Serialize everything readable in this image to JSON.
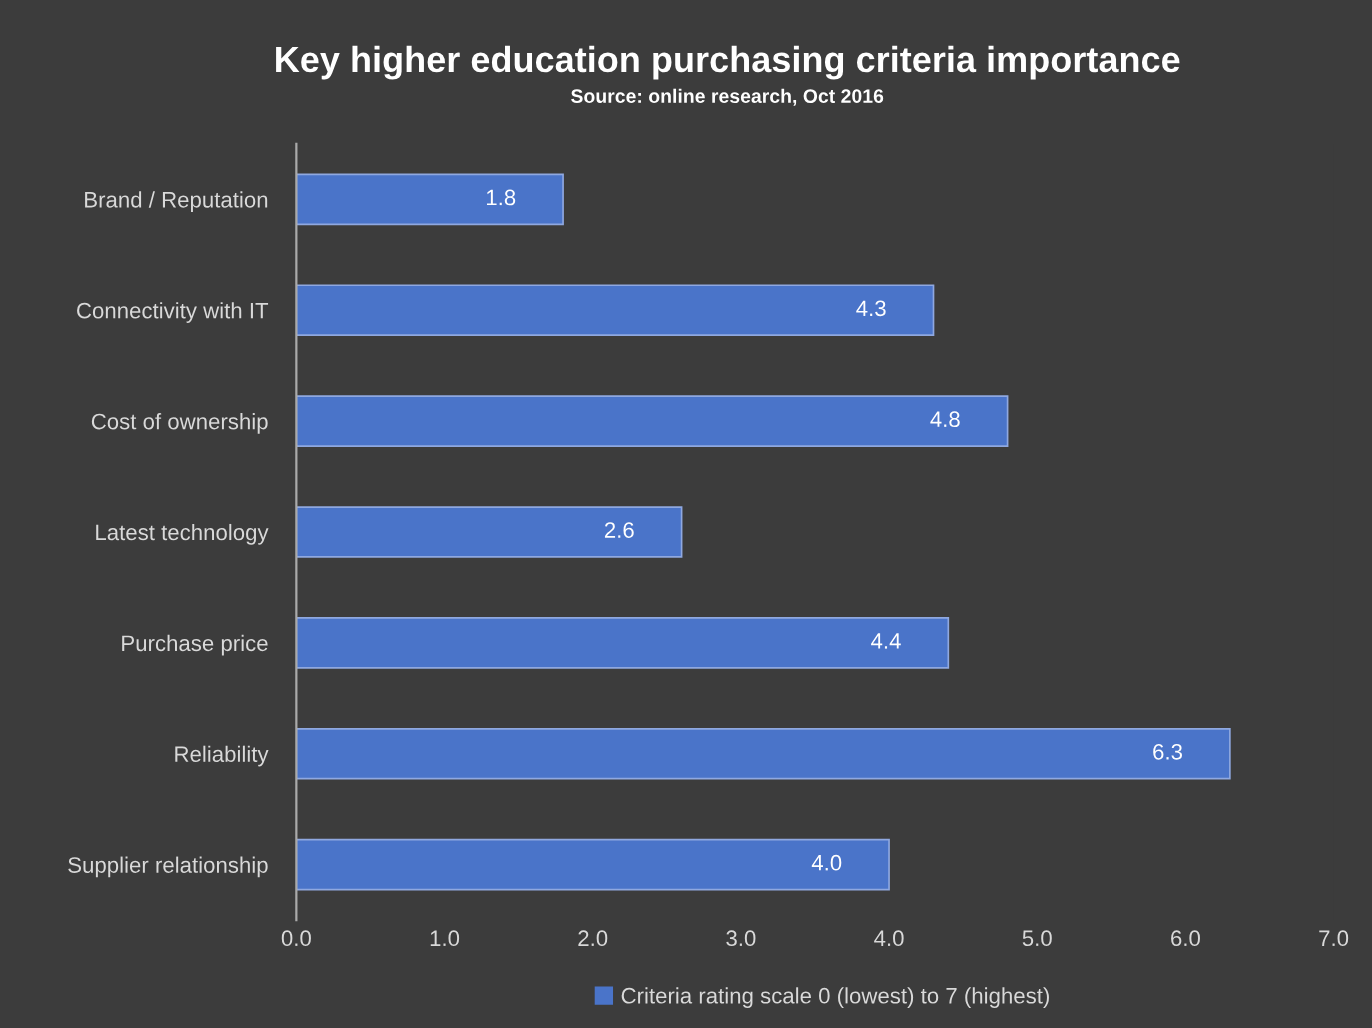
{
  "chart_data": {
    "type": "bar",
    "orientation": "horizontal",
    "title": "Key higher education purchasing criteria importance",
    "subtitle": "Source: online research, Oct 2016",
    "categories": [
      "Brand / Reputation",
      "Connectivity with IT",
      "Cost of ownership",
      "Latest technology",
      "Purchase price",
      "Reliability",
      "Supplier relationship"
    ],
    "series": [
      {
        "name": "Criteria rating scale 0 (lowest) to 7 (highest)",
        "color": "#4a74c9",
        "values": [
          1.8,
          4.3,
          4.8,
          2.6,
          4.4,
          6.3,
          4.0
        ],
        "value_labels": [
          "1.8",
          "4.3",
          "4.8",
          "2.6",
          "4.4",
          "6.3",
          "4.0"
        ]
      }
    ],
    "xlim": [
      0,
      7
    ],
    "xticks": [
      {
        "value": 0,
        "label": "0.0"
      },
      {
        "value": 1,
        "label": "1.0"
      },
      {
        "value": 2,
        "label": "2.0"
      },
      {
        "value": 3,
        "label": "3.0"
      },
      {
        "value": 4,
        "label": "4.0"
      },
      {
        "value": 5,
        "label": "5.0"
      },
      {
        "value": 6,
        "label": "6.0"
      },
      {
        "value": 7,
        "label": "7.0"
      }
    ],
    "grid": false,
    "legend": "bottom"
  }
}
